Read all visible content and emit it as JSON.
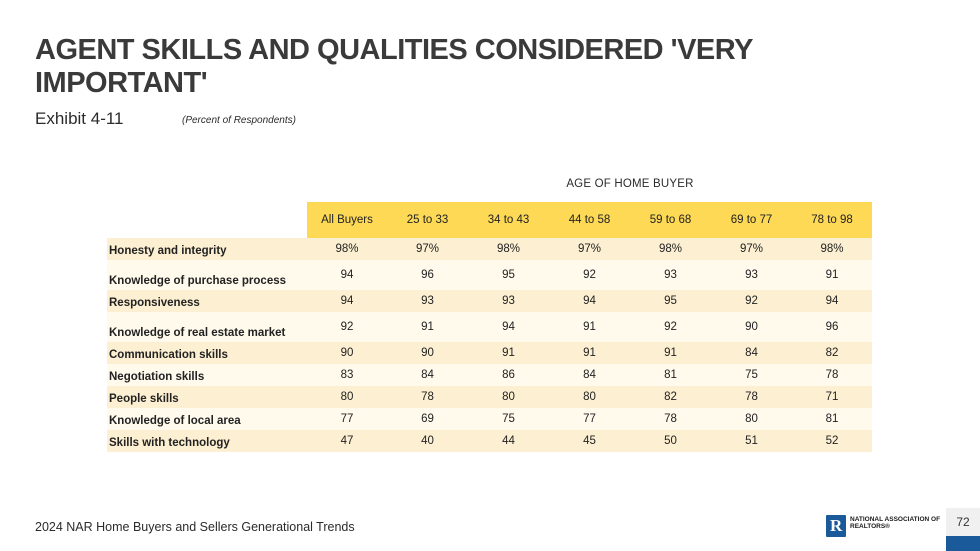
{
  "header": {
    "title": "AGENT SKILLS AND QUALITIES CONSIDERED 'VERY IMPORTANT'",
    "exhibit": "Exhibit 4-11",
    "subtitle": "(Percent of Respondents)"
  },
  "table": {
    "group_label": "AGE OF HOME BUYER",
    "columns": [
      "All Buyers",
      "25 to 33",
      "34 to 43",
      "44 to 58",
      "59 to 68",
      "69 to 77",
      "78 to 98"
    ],
    "rows": [
      {
        "label": "Honesty and integrity",
        "values": [
          "98%",
          "97%",
          "98%",
          "97%",
          "98%",
          "97%",
          "98%"
        ]
      },
      {
        "label": "Knowledge of purchase process",
        "values": [
          "94",
          "96",
          "95",
          "92",
          "93",
          "93",
          "91"
        ]
      },
      {
        "label": "Responsiveness",
        "values": [
          "94",
          "93",
          "93",
          "94",
          "95",
          "92",
          "94"
        ]
      },
      {
        "label": "Knowledge of real estate market",
        "values": [
          "92",
          "91",
          "94",
          "91",
          "92",
          "90",
          "96"
        ]
      },
      {
        "label": "Communication skills",
        "values": [
          "90",
          "90",
          "91",
          "91",
          "91",
          "84",
          "82"
        ]
      },
      {
        "label": "Negotiation skills",
        "values": [
          "83",
          "84",
          "86",
          "84",
          "81",
          "75",
          "78"
        ]
      },
      {
        "label": "People skills",
        "values": [
          "80",
          "78",
          "80",
          "80",
          "82",
          "78",
          "71"
        ]
      },
      {
        "label": "Knowledge of local area",
        "values": [
          "77",
          "69",
          "75",
          "77",
          "78",
          "80",
          "81"
        ]
      },
      {
        "label": "Skills with technology",
        "values": [
          "47",
          "40",
          "44",
          "45",
          "50",
          "51",
          "52"
        ]
      }
    ]
  },
  "footer": {
    "source": "2024 NAR Home Buyers and Sellers Generational Trends",
    "page_number": "72",
    "logo_letter": "R",
    "logo_text": "NATIONAL ASSOCIATION OF REALTORS®"
  },
  "colors": {
    "header_fill": "#fdd955",
    "row_shade": "#fdf0d2",
    "row_light": "#fffaec",
    "brand_blue": "#1b5a9a"
  }
}
